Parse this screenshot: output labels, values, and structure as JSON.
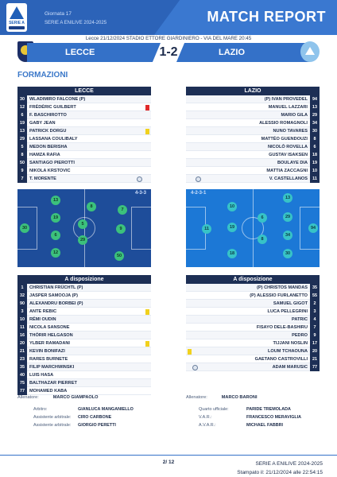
{
  "header": {
    "title": "MATCH REPORT",
    "competition": "Giornata 17",
    "season": "SERIE A ENILIVE 2024-2025",
    "logo_text": "SERIE A"
  },
  "match_info": "Lecce 21/12/2024 STADIO ETTORE GIARDINIERO - VIA DEL MARE 20:45",
  "score_band": {
    "home": "LECCE",
    "away": "LAZIO",
    "score": "1-2"
  },
  "section_title": "FORMAZIONI",
  "home": {
    "name": "LECCE",
    "lineup": [
      {
        "num": "30",
        "name": "WLADIMIRO FALCONE (P)"
      },
      {
        "num": "12",
        "name": "FRÉDÉRIC GUILBERT"
      },
      {
        "num": "6",
        "name": "F. BASCHIROTTO"
      },
      {
        "num": "19",
        "name": "GABY JEAN"
      },
      {
        "num": "13",
        "name": "PATRICK DORGU"
      },
      {
        "num": "29",
        "name": "LASSANA COULIBALY"
      },
      {
        "num": "5",
        "name": "MEDON BERISHA"
      },
      {
        "num": "8",
        "name": "HAMZA RAFIA"
      },
      {
        "num": "50",
        "name": "SANTIAGO PIEROTTI"
      },
      {
        "num": "9",
        "name": "NIKOLA KRSTOVIC"
      },
      {
        "num": "7",
        "name": "T. MORENTE"
      }
    ],
    "formation": "4-3-3",
    "subs_title": "A disposizione",
    "subs": [
      {
        "num": "1",
        "name": "CHRISTIAN FRÜCHTL (P)"
      },
      {
        "num": "32",
        "name": "JASPER SAMOOJA (P)"
      },
      {
        "num": "90",
        "name": "ALEXANDRU BORBEI (P)"
      },
      {
        "num": "3",
        "name": "ANTE REBIC"
      },
      {
        "num": "10",
        "name": "RÉMI OUDIN"
      },
      {
        "num": "11",
        "name": "NICOLA SANSONE"
      },
      {
        "num": "16",
        "name": "THÓRIR HELGASON"
      },
      {
        "num": "20",
        "name": "YLBER RAMADANI"
      },
      {
        "num": "21",
        "name": "KEVIN BONIFAZI"
      },
      {
        "num": "23",
        "name": "RARES BURNETE"
      },
      {
        "num": "35",
        "name": "FILIP MARCHWINSKI"
      },
      {
        "num": "40",
        "name": "LUIS HASA"
      },
      {
        "num": "75",
        "name": "BALTHAZAR PIERRET"
      },
      {
        "num": "77",
        "name": "MOHAMED KABA"
      }
    ],
    "coach_label": "Allenatore:",
    "coach": "MARCO GIAMPAOLO"
  },
  "away": {
    "name": "LAZIO",
    "lineup": [
      {
        "num": "94",
        "name": "(P) IVAN PROVEDEL"
      },
      {
        "num": "13",
        "name": "MANUEL LAZZARI"
      },
      {
        "num": "29",
        "name": "MARIO GILA"
      },
      {
        "num": "34",
        "name": "ALESSIO ROMAGNOLI"
      },
      {
        "num": "30",
        "name": "NUNO TAVARES"
      },
      {
        "num": "8",
        "name": "MATTÉO GUENDOUZI"
      },
      {
        "num": "6",
        "name": "NICOLÒ ROVELLA"
      },
      {
        "num": "18",
        "name": "GUSTAV ISAKSEN"
      },
      {
        "num": "19",
        "name": "BOULAYE DIA"
      },
      {
        "num": "10",
        "name": "MATTIA ZACCAGNI"
      },
      {
        "num": "11",
        "name": "V. CASTELLANOS"
      }
    ],
    "formation": "4-2-3-1",
    "subs_title": "A disposizione",
    "subs": [
      {
        "num": "35",
        "name": "(P) CHRISTOS MANDAS"
      },
      {
        "num": "55",
        "name": "(P) ALESSIO FURLANETTO"
      },
      {
        "num": "2",
        "name": "SAMUEL GIGOT"
      },
      {
        "num": "3",
        "name": "LUCA PELLEGRINI"
      },
      {
        "num": "4",
        "name": "PATRIC"
      },
      {
        "num": "7",
        "name": "FISAYO DELE-BASHIRU"
      },
      {
        "num": "9",
        "name": "PEDRO"
      },
      {
        "num": "17",
        "name": "TIJJANI NOSLIN"
      },
      {
        "num": "20",
        "name": "LOUM TCHAOUNA"
      },
      {
        "num": "21",
        "name": "GAETANO CASTROVILLI"
      },
      {
        "num": "77",
        "name": "ADAM MARUSIC"
      }
    ],
    "coach_label": "Allenatore:",
    "coach": "MARCO BARONI"
  },
  "officials": {
    "arbitro_label": "Arbitro:",
    "arbitro": "GIANLUCA MANGANIELLO",
    "ass1_label": "Assistente arbitrale:",
    "ass1": "CIRO CARBONE",
    "ass2_label": "Assistente arbitrale:",
    "ass2": "GIORGIO PERETTI",
    "quarto_label": "Quarto ufficiale:",
    "quarto": "PARIDE TREMOLADA",
    "var_label": "V.A.R.:",
    "var": "FRANCESCO MERAVIGLIA",
    "avar_label": "A.V.A.R.:",
    "avar": "MICHAEL FABBRI"
  },
  "footer": {
    "page": "2/ 12",
    "season": "SERIE A ENILIVE 2024-2025",
    "printed": "Stampato il: 21/12/2024 alle 22:54:15"
  },
  "colors": {
    "brand": "#2c63b8",
    "dark": "#1d2f55",
    "accent": "#3b78c9",
    "yellow_card": "#f1d11d",
    "red_card": "#e12a2a"
  }
}
